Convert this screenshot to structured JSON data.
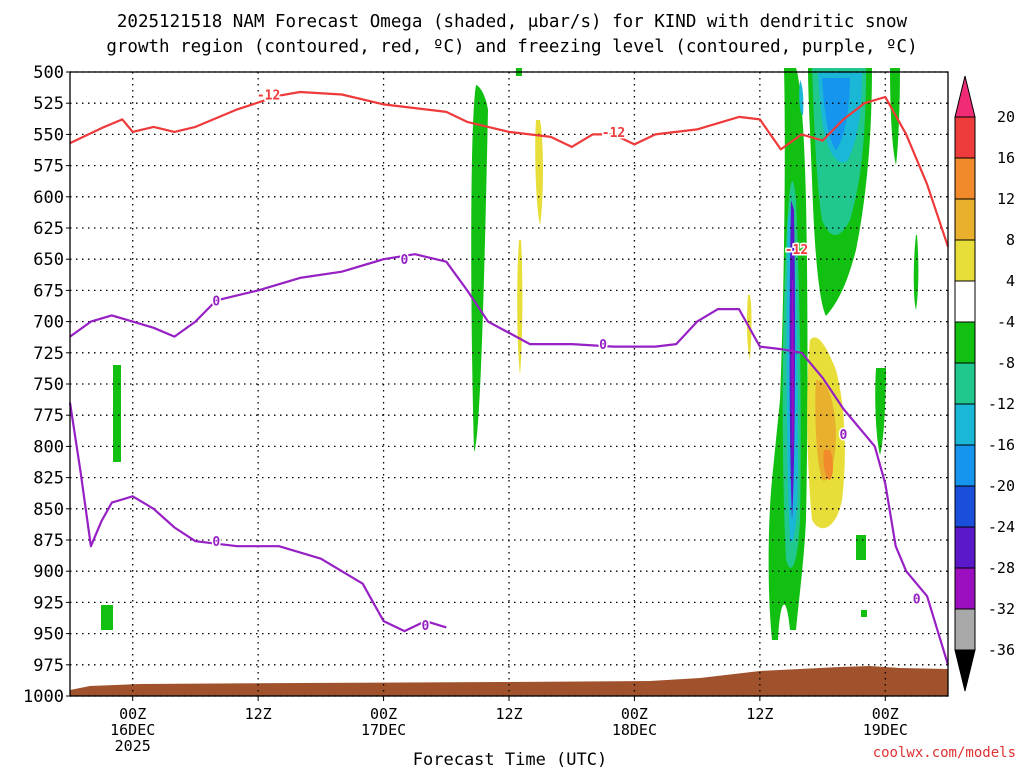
{
  "chart_data": {
    "type": "heatmap",
    "title_line1": "2025121518 NAM Forecast Omega (shaded, μbar/s) for KIND with dendritic snow",
    "title_line2": "growth region (contoured, red, ºC) and freezing level (contoured, purple, ºC)",
    "xlabel": "Forecast Time (UTC)",
    "credit": "coolwx.com/models",
    "x_unit": "hours from 2025121518",
    "xlim": [
      0,
      84
    ],
    "ylim": [
      1000,
      500
    ],
    "y_ticks": [
      500,
      525,
      550,
      575,
      600,
      625,
      650,
      675,
      700,
      725,
      750,
      775,
      800,
      825,
      850,
      875,
      900,
      925,
      950,
      975,
      1000
    ],
    "x_ticks": [
      {
        "hour": 6,
        "line1": "00Z",
        "line2": "16DEC",
        "line3": "2025"
      },
      {
        "hour": 18,
        "line1": "12Z",
        "line2": "",
        "line3": ""
      },
      {
        "hour": 30,
        "line1": "00Z",
        "line2": "17DEC",
        "line3": ""
      },
      {
        "hour": 42,
        "line1": "12Z",
        "line2": "",
        "line3": ""
      },
      {
        "hour": 54,
        "line1": "00Z",
        "line2": "18DEC",
        "line3": ""
      },
      {
        "hour": 66,
        "line1": "12Z",
        "line2": "",
        "line3": ""
      },
      {
        "hour": 78,
        "line1": "00Z",
        "line2": "19DEC",
        "line3": ""
      }
    ],
    "colorbar": {
      "labels": [
        "20",
        "16",
        "12",
        "8",
        "4",
        "-4",
        "-8",
        "-12",
        "-16",
        "-20",
        "-24",
        "-28",
        "-32",
        "-36"
      ],
      "colors": [
        "#f02c76",
        "#ee3b3b",
        "#f08a2a",
        "#e9b02e",
        "#e8de3a",
        "#ffffff",
        "#11c011",
        "#21c88d",
        "#1ab7d6",
        "#1595ee",
        "#1a4fdc",
        "#5a18c9",
        "#9b0fc0",
        "#a9a9a9",
        "#000000"
      ]
    },
    "series": [
      {
        "name": "-12 °C isotherm (DGZ)",
        "color": "#ee3a3a",
        "labels": [
          "-12"
        ],
        "points": [
          [
            0,
            557
          ],
          [
            3,
            545
          ],
          [
            5,
            538
          ],
          [
            6,
            548
          ],
          [
            8,
            544
          ],
          [
            10,
            548
          ],
          [
            12,
            544
          ],
          [
            16,
            530
          ],
          [
            20,
            519
          ],
          [
            22,
            516
          ],
          [
            26,
            518
          ],
          [
            30,
            526
          ],
          [
            34,
            530
          ],
          [
            36,
            532
          ],
          [
            38,
            540
          ],
          [
            42,
            548
          ],
          [
            46,
            552
          ],
          [
            48,
            560
          ],
          [
            50,
            550
          ],
          [
            52,
            550
          ],
          [
            54,
            558
          ],
          [
            56,
            550
          ],
          [
            60,
            546
          ],
          [
            64,
            536
          ],
          [
            66,
            538
          ],
          [
            68,
            562
          ],
          [
            70,
            550
          ],
          [
            72,
            555
          ],
          [
            74,
            538
          ],
          [
            76,
            525
          ],
          [
            78,
            520
          ],
          [
            80,
            550
          ],
          [
            82,
            590
          ],
          [
            84,
            640
          ]
        ]
      },
      {
        "name": "0 °C freezing level (upper)",
        "color": "#9620c4",
        "labels": [
          "0"
        ],
        "points": [
          [
            0,
            712
          ],
          [
            2,
            700
          ],
          [
            4,
            695
          ],
          [
            6,
            700
          ],
          [
            8,
            705
          ],
          [
            10,
            712
          ],
          [
            12,
            700
          ],
          [
            14,
            683
          ],
          [
            18,
            675
          ],
          [
            22,
            665
          ],
          [
            26,
            660
          ],
          [
            30,
            650
          ],
          [
            33,
            646
          ],
          [
            36,
            652
          ],
          [
            38,
            675
          ],
          [
            40,
            700
          ],
          [
            44,
            718
          ],
          [
            48,
            718
          ],
          [
            52,
            720
          ],
          [
            56,
            720
          ],
          [
            58,
            718
          ],
          [
            60,
            700
          ],
          [
            62,
            690
          ],
          [
            64,
            690
          ],
          [
            66,
            720
          ],
          [
            68,
            722
          ],
          [
            70,
            725
          ],
          [
            72,
            745
          ],
          [
            74,
            770
          ],
          [
            76,
            790
          ],
          [
            77,
            800
          ],
          [
            78,
            830
          ],
          [
            79,
            880
          ],
          [
            80,
            900
          ],
          [
            82,
            920
          ],
          [
            84,
            975
          ]
        ]
      },
      {
        "name": "0 °C freezing level (lower)",
        "color": "#9620c4",
        "labels": [
          "0"
        ],
        "points": [
          [
            0,
            765
          ],
          [
            1,
            820
          ],
          [
            2,
            880
          ],
          [
            3,
            860
          ],
          [
            4,
            845
          ],
          [
            6,
            840
          ],
          [
            8,
            850
          ],
          [
            10,
            865
          ],
          [
            12,
            876
          ],
          [
            16,
            880
          ],
          [
            20,
            880
          ],
          [
            24,
            890
          ],
          [
            28,
            910
          ],
          [
            30,
            940
          ],
          [
            32,
            948
          ],
          [
            34,
            940
          ],
          [
            36,
            945
          ]
        ]
      }
    ]
  }
}
